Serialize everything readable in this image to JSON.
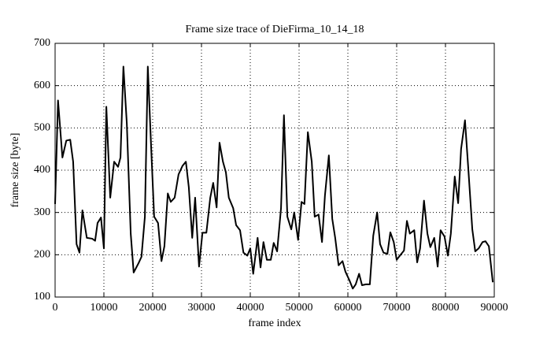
{
  "chart_data": {
    "type": "line",
    "title": "Frame size trace of DieFirma_10_14_18",
    "xlabel": "frame index",
    "ylabel": "frame size [byte]",
    "x": [
      0,
      600,
      1500,
      2300,
      3100,
      3700,
      4400,
      5000,
      5600,
      6500,
      7600,
      8200,
      8700,
      9400,
      10000,
      10500,
      11300,
      12100,
      12900,
      13400,
      14000,
      14700,
      15500,
      16100,
      17100,
      17700,
      18400,
      19000,
      19700,
      20300,
      21100,
      21800,
      22400,
      23100,
      23700,
      24500,
      25300,
      26100,
      26800,
      27400,
      28100,
      28700,
      29500,
      30200,
      31000,
      31800,
      32400,
      33100,
      33700,
      34400,
      35000,
      35600,
      36500,
      37100,
      37900,
      38600,
      39400,
      40000,
      40600,
      41500,
      42100,
      42700,
      43400,
      44200,
      44800,
      45500,
      46300,
      46900,
      47600,
      48400,
      49000,
      49800,
      50500,
      51100,
      51800,
      52600,
      53200,
      54000,
      54700,
      55300,
      56100,
      56800,
      57400,
      58100,
      58900,
      59500,
      60300,
      61000,
      61600,
      62300,
      62900,
      63700,
      64500,
      65200,
      66000,
      66600,
      67300,
      68100,
      68700,
      69400,
      70000,
      70800,
      71500,
      72100,
      72700,
      73600,
      74200,
      74800,
      75600,
      76300,
      76900,
      77700,
      78400,
      79000,
      79800,
      80500,
      81100,
      81900,
      82600,
      83200,
      84000,
      84700,
      85500,
      86100,
      86800,
      87600,
      88200,
      88900,
      89700
    ],
    "series": [
      {
        "name": "frame size",
        "color": "#000000",
        "values": [
          320,
          565,
          430,
          470,
          472,
          420,
          225,
          205,
          305,
          240,
          238,
          233,
          275,
          288,
          215,
          550,
          335,
          420,
          408,
          430,
          645,
          510,
          250,
          158,
          180,
          195,
          290,
          645,
          450,
          290,
          275,
          185,
          220,
          345,
          325,
          335,
          390,
          410,
          420,
          360,
          240,
          335,
          172,
          252,
          252,
          335,
          370,
          312,
          465,
          420,
          395,
          335,
          310,
          270,
          258,
          205,
          198,
          215,
          155,
          240,
          170,
          230,
          188,
          188,
          228,
          208,
          310,
          530,
          290,
          260,
          300,
          235,
          325,
          320,
          490,
          420,
          290,
          295,
          230,
          340,
          435,
          285,
          240,
          175,
          185,
          160,
          140,
          120,
          130,
          155,
          128,
          130,
          130,
          245,
          300,
          225,
          205,
          202,
          253,
          230,
          188,
          200,
          210,
          280,
          250,
          258,
          182,
          215,
          328,
          250,
          218,
          240,
          172,
          258,
          243,
          198,
          250,
          385,
          322,
          450,
          518,
          400,
          260,
          208,
          215,
          230,
          232,
          220,
          135
        ]
      }
    ],
    "xlim": [
      0,
      90000
    ],
    "xticks": [
      0,
      10000,
      20000,
      30000,
      40000,
      50000,
      60000,
      70000,
      80000,
      90000
    ],
    "ylim": [
      100,
      700
    ],
    "yticks": [
      100,
      200,
      300,
      400,
      500,
      600,
      700
    ],
    "grid": true
  }
}
